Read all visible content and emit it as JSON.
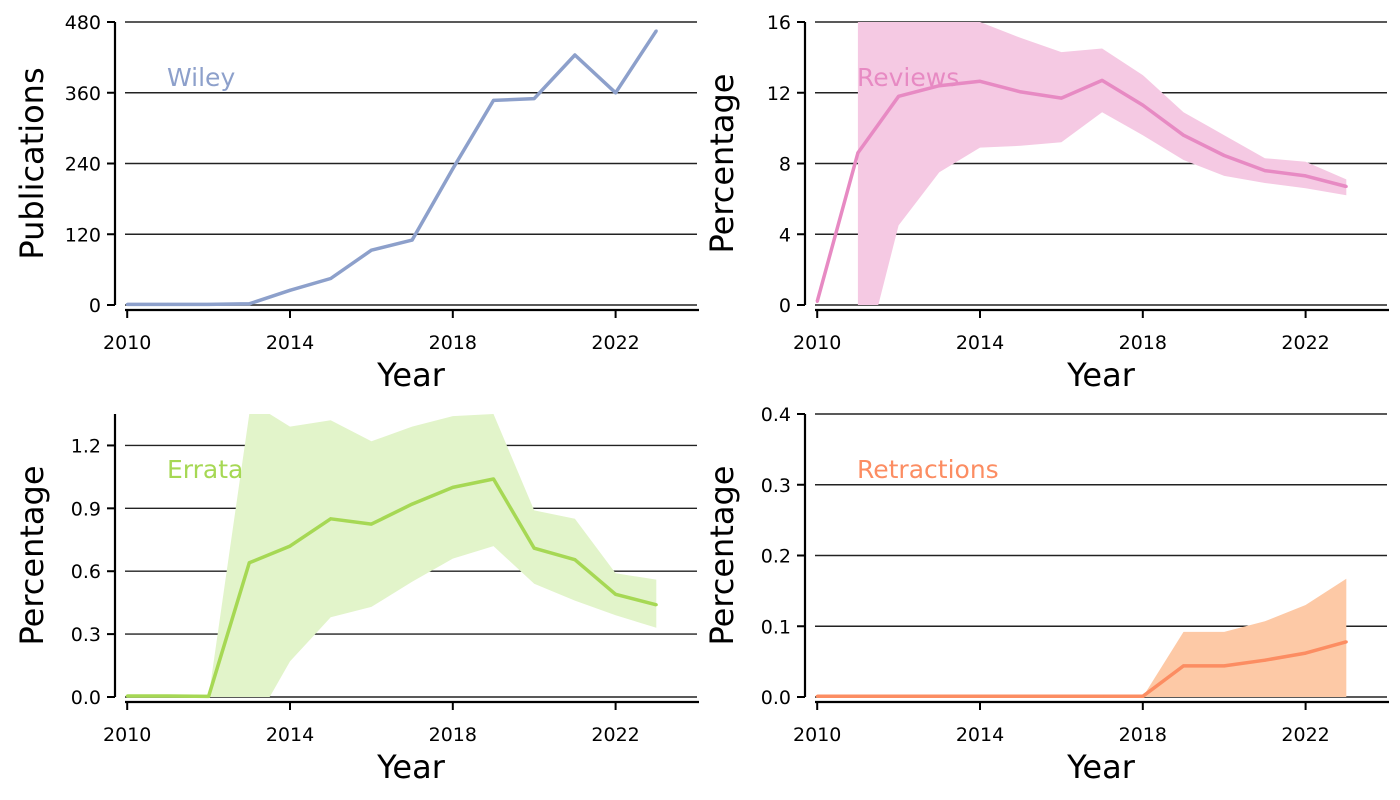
{
  "chart_data": [
    {
      "type": "line",
      "title": "Wiley",
      "xlabel": "Year",
      "ylabel": "Publications",
      "color": "#8da0cb",
      "band_color": null,
      "xlim": [
        2009.7,
        2024
      ],
      "ylim": [
        0,
        480
      ],
      "xticks": [
        "2010",
        "2014",
        "2018",
        "2022"
      ],
      "yticks": [
        "0",
        "120",
        "240",
        "360",
        "480"
      ],
      "grid": "horizontal",
      "x": [
        2010,
        2011,
        2012,
        2013,
        2014,
        2015,
        2016,
        2017,
        2018,
        2019,
        2020,
        2021,
        2022,
        2023
      ],
      "y": [
        1,
        1,
        1,
        2,
        25,
        45,
        93,
        110,
        231,
        347,
        350,
        424,
        360,
        465
      ],
      "band": null
    },
    {
      "type": "line",
      "title": "Reviews",
      "xlabel": "Year",
      "ylabel": "Percentage",
      "color": "#e78ac3",
      "band_color": "#f5c9e3",
      "xlim": [
        2009.7,
        2024
      ],
      "ylim": [
        0,
        16
      ],
      "xticks": [
        "2010",
        "2014",
        "2018",
        "2022"
      ],
      "yticks": [
        "0",
        "4",
        "8",
        "12",
        "16"
      ],
      "grid": "horizontal",
      "x": [
        2010,
        2011,
        2012,
        2013,
        2014,
        2015,
        2016,
        2017,
        2018,
        2019,
        2020,
        2021,
        2022,
        2023
      ],
      "y": [
        0.2,
        8.6,
        11.8,
        12.4,
        12.65,
        12.05,
        11.7,
        12.7,
        11.3,
        9.6,
        8.45,
        7.6,
        7.3,
        6.7
      ],
      "band": {
        "x": [
          2011,
          2011.5,
          2012,
          2013,
          2014,
          2015,
          2016,
          2017,
          2018,
          2019,
          2020,
          2021,
          2022,
          2023
        ],
        "lower": [
          0,
          0,
          4.5,
          7.5,
          8.9,
          9.0,
          9.2,
          10.9,
          9.6,
          8.2,
          7.3,
          6.9,
          6.6,
          6.2
        ],
        "upper": [
          16.5,
          16.5,
          16.5,
          16.5,
          16.5,
          15.1,
          14.3,
          14.5,
          13.0,
          10.9,
          9.6,
          8.3,
          8.1,
          7.1
        ]
      }
    },
    {
      "type": "line",
      "title": "Errata",
      "xlabel": "Year",
      "ylabel": "Percentage",
      "color": "#a6d854",
      "band_color": "#e2f4ca",
      "xlim": [
        2009.7,
        2024
      ],
      "ylim": [
        0,
        1.35
      ],
      "xticks": [
        "2010",
        "2014",
        "2018",
        "2022"
      ],
      "yticks": [
        "0.0",
        "0.3",
        "0.6",
        "0.9",
        "1.2"
      ],
      "grid": "horizontal",
      "x": [
        2010,
        2011,
        2012,
        2013,
        2014,
        2015,
        2016,
        2017,
        2018,
        2019,
        2020,
        2021,
        2022,
        2023
      ],
      "y": [
        0.005,
        0.005,
        0.003,
        0.64,
        0.72,
        0.85,
        0.825,
        0.92,
        1.0,
        1.04,
        0.71,
        0.655,
        0.49,
        0.44
      ],
      "band": {
        "x": [
          2012,
          2013,
          2013.5,
          2014,
          2015,
          2016,
          2017,
          2018,
          2019,
          2020,
          2021,
          2022,
          2023
        ],
        "lower": [
          0,
          0,
          0,
          0.17,
          0.38,
          0.43,
          0.55,
          0.66,
          0.72,
          0.54,
          0.46,
          0.39,
          0.33
        ],
        "upper": [
          0,
          1.4,
          1.4,
          1.29,
          1.32,
          1.22,
          1.29,
          1.34,
          1.36,
          0.89,
          0.85,
          0.59,
          0.56
        ]
      }
    },
    {
      "type": "line",
      "title": "Retractions",
      "xlabel": "Year",
      "ylabel": "Percentage",
      "color": "#fc8d62",
      "band_color": "#fdc9a6",
      "xlim": [
        2009.7,
        2024
      ],
      "ylim": [
        0,
        0.4
      ],
      "xticks": [
        "2010",
        "2014",
        "2018",
        "2022"
      ],
      "yticks": [
        "0.0",
        "0.1",
        "0.2",
        "0.3",
        "0.4"
      ],
      "grid": "horizontal",
      "x": [
        2010,
        2011,
        2012,
        2013,
        2014,
        2015,
        2016,
        2017,
        2018,
        2019,
        2020,
        2021,
        2022,
        2023
      ],
      "y": [
        0.001,
        0.001,
        0.001,
        0.001,
        0.001,
        0.001,
        0.001,
        0.001,
        0.001,
        0.044,
        0.044,
        0.052,
        0.062,
        0.078
      ],
      "band": {
        "x": [
          2018,
          2019,
          2020,
          2021,
          2022,
          2023
        ],
        "lower": [
          0,
          0,
          0,
          0,
          0,
          0
        ],
        "upper": [
          0,
          0.092,
          0.092,
          0.107,
          0.13,
          0.167
        ]
      }
    }
  ]
}
